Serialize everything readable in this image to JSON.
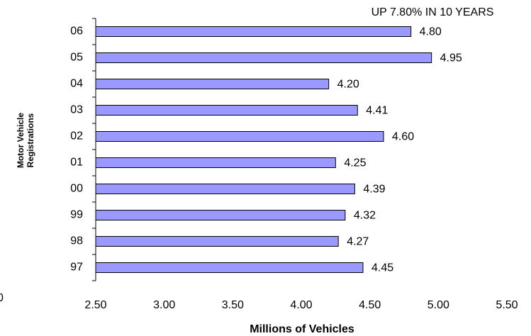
{
  "chart_data": {
    "type": "bar",
    "orientation": "horizontal",
    "annotation": "UP 7.80% IN 10 YEARS",
    "ylabel": [
      "Motor Vehicle",
      "Registrations"
    ],
    "xlabel": "Millions of Vehicles",
    "stray_label": "0",
    "categories": [
      "06",
      "05",
      "04",
      "03",
      "02",
      "01",
      "00",
      "99",
      "98",
      "97"
    ],
    "values": [
      4.8,
      4.95,
      4.2,
      4.41,
      4.6,
      4.25,
      4.39,
      4.32,
      4.27,
      4.45
    ],
    "value_labels": [
      "4.80",
      "4.95",
      "4.20",
      "4.41",
      "4.60",
      "4.25",
      "4.39",
      "4.32",
      "4.27",
      "4.45"
    ],
    "color": "#9999ff",
    "xlim": [
      2.5,
      5.5
    ],
    "xticks": [
      {
        "value": 2.5,
        "label": "2.50"
      },
      {
        "value": 3,
        "label": "3.00"
      },
      {
        "value": 3.5,
        "label": "3.50"
      },
      {
        "value": 4,
        "label": "4.00"
      },
      {
        "value": 4.5,
        "label": "4.50"
      },
      {
        "value": 5,
        "label": "5.00"
      },
      {
        "value": 5.5,
        "label": "5.50"
      }
    ],
    "grid": false
  }
}
